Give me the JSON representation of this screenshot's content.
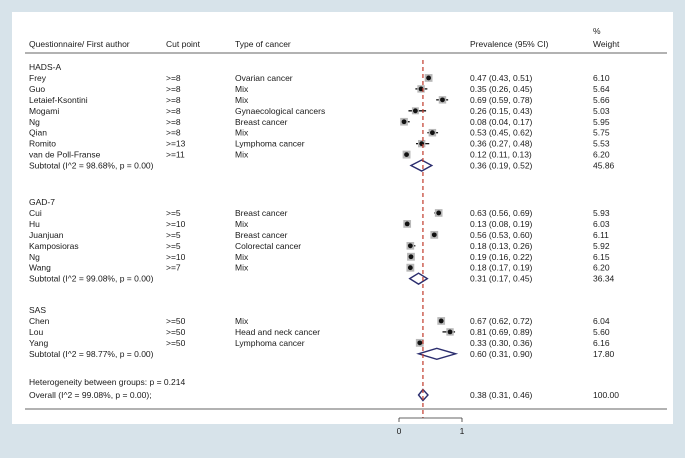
{
  "chart_data": {
    "type": "forest",
    "columns": {
      "author": "Questionnaire/ First author",
      "cut": "Cut point",
      "cancer": "Type of cancer",
      "prevalence": "Prevalence (95% CI)",
      "weight_line1": "%",
      "weight_line2": "Weight"
    },
    "x_axis": {
      "range": [
        0,
        1
      ],
      "ticks": [
        "0",
        "1"
      ]
    },
    "null_line_value": 0.38,
    "groups": [
      {
        "name": "HADS-A",
        "studies": [
          {
            "author": "Frey",
            "cut": ">=8",
            "cancer": "Ovarian cancer",
            "est": 0.47,
            "lo": 0.43,
            "hi": 0.51,
            "ci_text": "0.47 (0.43, 0.51)",
            "weight": "6.10"
          },
          {
            "author": "Guo",
            "cut": ">=8",
            "cancer": "Mix",
            "est": 0.35,
            "lo": 0.26,
            "hi": 0.45,
            "ci_text": "0.35 (0.26, 0.45)",
            "weight": "5.64"
          },
          {
            "author": "Letaief-Ksontini",
            "cut": ">=8",
            "cancer": "Mix",
            "est": 0.69,
            "lo": 0.59,
            "hi": 0.78,
            "ci_text": "0.69 (0.59, 0.78)",
            "weight": "5.66"
          },
          {
            "author": "Mogami",
            "cut": ">=8",
            "cancer": "Gynaecological cancers",
            "est": 0.26,
            "lo": 0.15,
            "hi": 0.43,
            "ci_text": "0.26 (0.15, 0.43)",
            "weight": "5.03"
          },
          {
            "author": "Ng",
            "cut": ">=8",
            "cancer": "Breast cancer",
            "est": 0.08,
            "lo": 0.04,
            "hi": 0.17,
            "ci_text": "0.08 (0.04, 0.17)",
            "weight": "5.95"
          },
          {
            "author": "Qian",
            "cut": ">=8",
            "cancer": "Mix",
            "est": 0.53,
            "lo": 0.45,
            "hi": 0.62,
            "ci_text": "0.53 (0.45, 0.62)",
            "weight": "5.75"
          },
          {
            "author": "Romito",
            "cut": ">=13",
            "cancer": "Lymphoma cancer",
            "est": 0.36,
            "lo": 0.27,
            "hi": 0.48,
            "ci_text": "0.36 (0.27, 0.48)",
            "weight": "5.53"
          },
          {
            "author": "van de Poll-Franse",
            "cut": ">=11",
            "cancer": "Mix",
            "est": 0.12,
            "lo": 0.11,
            "hi": 0.13,
            "ci_text": "0.12 (0.11, 0.13)",
            "weight": "6.20"
          }
        ],
        "subtotal": {
          "label": "Subtotal  (I^2 = 98.68%, p = 0.00)",
          "est": 0.36,
          "lo": 0.19,
          "hi": 0.52,
          "ci_text": "0.36 (0.19, 0.52)",
          "weight": "45.86"
        }
      },
      {
        "name": "GAD-7",
        "studies": [
          {
            "author": "Cui",
            "cut": ">=5",
            "cancer": "Breast cancer",
            "est": 0.63,
            "lo": 0.56,
            "hi": 0.69,
            "ci_text": "0.63 (0.56, 0.69)",
            "weight": "5.93"
          },
          {
            "author": "Hu",
            "cut": ">=10",
            "cancer": "Mix",
            "est": 0.13,
            "lo": 0.08,
            "hi": 0.19,
            "ci_text": "0.13 (0.08, 0.19)",
            "weight": "6.03"
          },
          {
            "author": "Juanjuan",
            "cut": ">=5",
            "cancer": "Breast cancer",
            "est": 0.56,
            "lo": 0.53,
            "hi": 0.6,
            "ci_text": "0.56 (0.53, 0.60)",
            "weight": "6.11"
          },
          {
            "author": "Kamposioras",
            "cut": ">=5",
            "cancer": "Colorectal cancer",
            "est": 0.18,
            "lo": 0.13,
            "hi": 0.26,
            "ci_text": "0.18 (0.13, 0.26)",
            "weight": "5.92"
          },
          {
            "author": "Ng",
            "cut": ">=10",
            "cancer": "Mix",
            "est": 0.19,
            "lo": 0.16,
            "hi": 0.22,
            "ci_text": "0.19 (0.16, 0.22)",
            "weight": "6.15"
          },
          {
            "author": "Wang",
            "cut": ">=7",
            "cancer": "Mix",
            "est": 0.18,
            "lo": 0.17,
            "hi": 0.19,
            "ci_text": "0.18 (0.17, 0.19)",
            "weight": "6.20"
          }
        ],
        "subtotal": {
          "label": "Subtotal  (I^2 = 99.08%, p = 0.00)",
          "est": 0.31,
          "lo": 0.17,
          "hi": 0.45,
          "ci_text": "0.31 (0.17, 0.45)",
          "weight": "36.34"
        }
      },
      {
        "name": "SAS",
        "studies": [
          {
            "author": "Chen",
            "cut": ">=50",
            "cancer": "Mix",
            "est": 0.67,
            "lo": 0.62,
            "hi": 0.72,
            "ci_text": "0.67 (0.62, 0.72)",
            "weight": "6.04"
          },
          {
            "author": "Lou",
            "cut": ">=50",
            "cancer": "Head and neck cancer",
            "est": 0.81,
            "lo": 0.69,
            "hi": 0.89,
            "ci_text": "0.81 (0.69, 0.89)",
            "weight": "5.60"
          },
          {
            "author": "Yang",
            "cut": ">=50",
            "cancer": "Lymphoma cancer",
            "est": 0.33,
            "lo": 0.3,
            "hi": 0.36,
            "ci_text": "0.33 (0.30, 0.36)",
            "weight": "6.16"
          }
        ],
        "subtotal": {
          "label": "Subtotal  (I^2 = 98.77%, p = 0.00)",
          "est": 0.6,
          "lo": 0.31,
          "hi": 0.9,
          "ci_text": "0.60 (0.31, 0.90)",
          "weight": "17.80"
        }
      }
    ],
    "heterogeneity": "Heterogeneity between groups: p = 0.214",
    "overall": {
      "label": "Overall  (I^2 = 99.08%, p = 0.00);",
      "est": 0.38,
      "lo": 0.31,
      "hi": 0.46,
      "ci_text": "0.38 (0.31, 0.46)",
      "weight": "100.00"
    }
  },
  "colors": {
    "background": "#d7e3ea",
    "panel": "#ffffff",
    "diamond": "#2b2d6e",
    "null_line": "#c0392b",
    "marker": "#111111",
    "square": "#b8b8b8"
  }
}
